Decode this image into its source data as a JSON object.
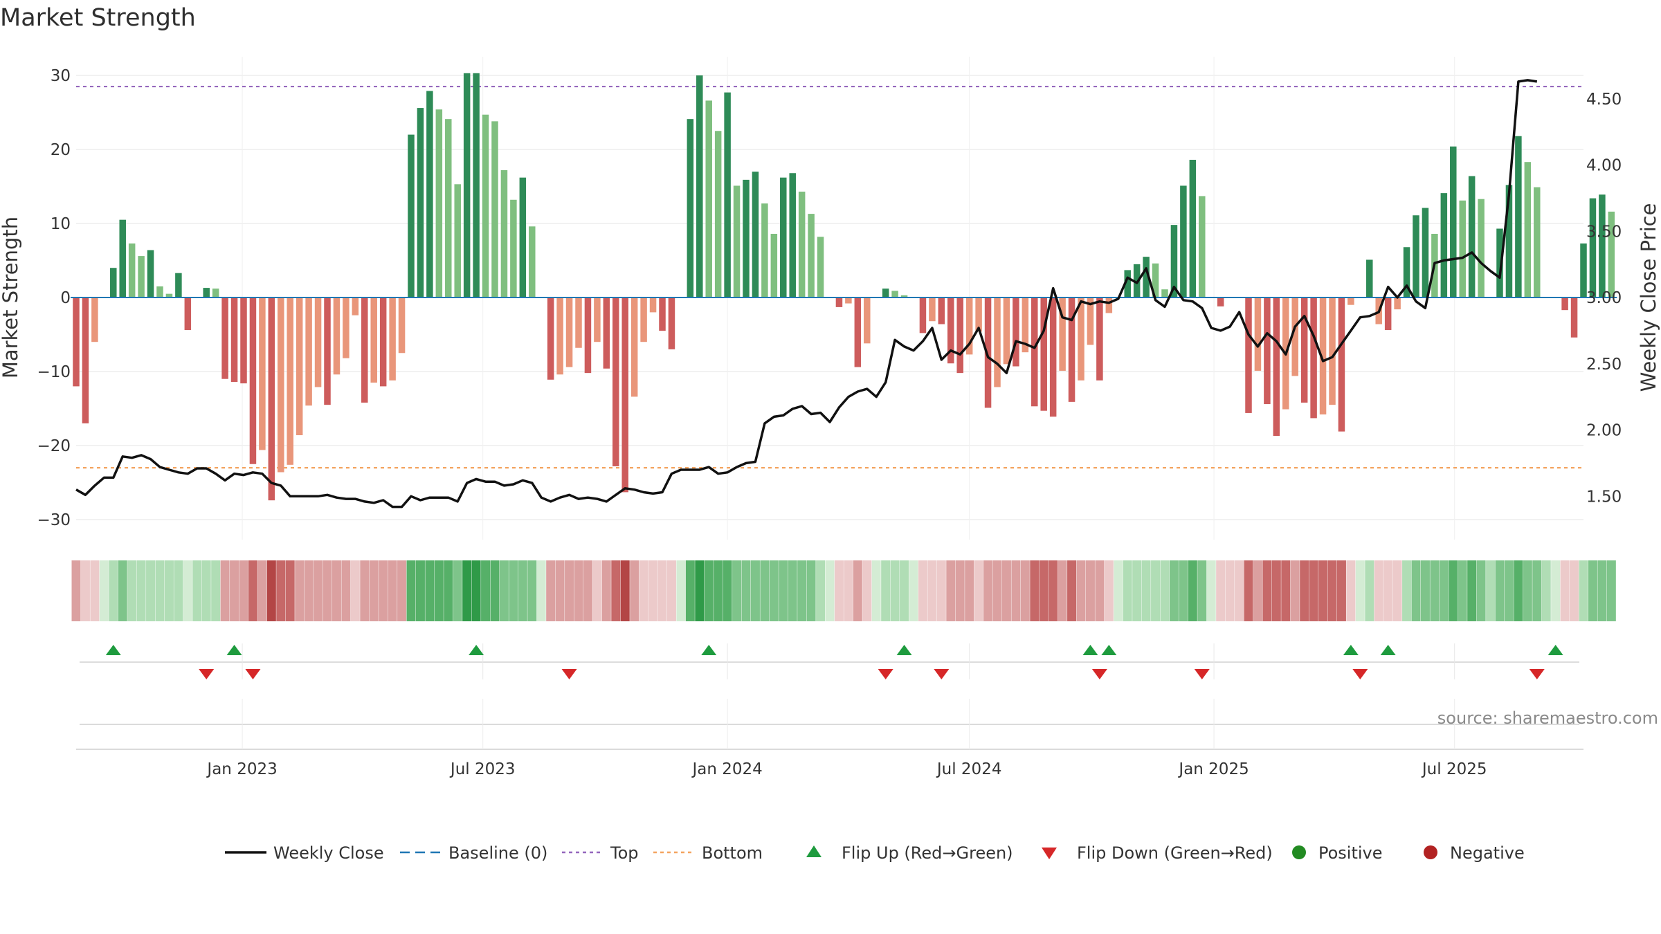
{
  "colors": {
    "pos_dark": "#2e8b57",
    "pos_light": "#7fbf7f",
    "neg_dark": "#cd5c5c",
    "neg_light": "#e9967a",
    "line": "#111111",
    "baseline": "#1f77b4",
    "top": "#9467bd",
    "bottom": "#f4a460",
    "flip_up": "#1e9b3e",
    "flip_down": "#d62728",
    "positive": "#228b22",
    "negative": "#b22222",
    "grid": "#e6e6e6"
  },
  "chart_data": {
    "type": "bar",
    "title": "Market Strength",
    "ylabel": "Market Strength",
    "y2label": "Weekly Close Price",
    "ylim": [
      -33,
      33
    ],
    "y2lim": [
      1.25,
      4.7
    ],
    "yticks": [
      30,
      20,
      10,
      0,
      -10,
      -20,
      -30
    ],
    "yticklabels": [
      "30",
      "20",
      "10",
      "0",
      "−10",
      "−20",
      "−30"
    ],
    "y2ticks": [
      4.5,
      4.0,
      3.5,
      3.0,
      2.5,
      2.0,
      1.5
    ],
    "y2ticklabels": [
      "4.50",
      "4.00",
      "3.50",
      "3.00",
      "2.50",
      "2.00",
      "1.50"
    ],
    "x_start": "2022-08-29",
    "x_end": "2025-10-06",
    "xticks": [
      {
        "date": "2023-01-01",
        "label": "Jan 2023"
      },
      {
        "date": "2023-07-01",
        "label": "Jul 2023"
      },
      {
        "date": "2024-01-01",
        "label": "Jan 2024"
      },
      {
        "date": "2024-07-01",
        "label": "Jul 2024"
      },
      {
        "date": "2025-01-01",
        "label": "Jan 2025"
      },
      {
        "date": "2025-07-01",
        "label": "Jul 2025"
      }
    ],
    "top_line": 28.5,
    "bottom_line": -23,
    "baseline": 0,
    "first_bar_date": "2022-08-29",
    "strength_weekly": [
      -12,
      -17,
      -6,
      0,
      4,
      10.5,
      7.3,
      5.6,
      6.4,
      1.5,
      0.5,
      3.3,
      -4.4,
      0,
      1.3,
      1.2,
      -11,
      -11.4,
      -11.6,
      -22.5,
      -20.6,
      -27.4,
      -23.6,
      -22.6,
      -18.6,
      -14.6,
      -12.1,
      -14.5,
      -10.4,
      -8.2,
      -2.4,
      -14.2,
      -11.5,
      -12,
      -11.2,
      -7.5,
      22,
      25.6,
      27.9,
      25.4,
      24.1,
      15.3,
      30.3,
      30.3,
      24.7,
      23.8,
      17.2,
      13.2,
      16.2,
      9.6,
      0,
      -11.1,
      -10.4,
      -9.4,
      -6.8,
      -10.2,
      -6,
      -9.6,
      -22.8,
      -26.3,
      -13.4,
      -6,
      -2,
      -4.5,
      -7,
      0,
      24.1,
      30,
      26.6,
      22.5,
      27.7,
      15.1,
      15.9,
      17,
      12.7,
      8.6,
      16.2,
      16.8,
      14.3,
      11.3,
      8.2,
      0,
      -1.3,
      -0.8,
      -9.4,
      -6.2,
      0,
      1.2,
      0.9,
      0.3,
      0,
      -4.8,
      -3.2,
      -3.6,
      -8.9,
      -10.2,
      -7.7,
      -4.6,
      -14.9,
      -12.1,
      -9,
      -9.3,
      -7.4,
      -14.7,
      -15.3,
      -16.1,
      -9.9,
      -14.1,
      -11.2,
      -6.4,
      -11.2,
      -2.1,
      0,
      3.7,
      4.5,
      5.5,
      4.6,
      1.1,
      9.8,
      15.1,
      18.6,
      13.7,
      0,
      -1.2,
      0,
      0,
      -15.6,
      -9.9,
      -14.4,
      -18.7,
      -15.1,
      -10.6,
      -14.2,
      -16.3,
      -15.8,
      -14.5,
      -18.1,
      -1,
      0,
      5.1,
      -3.6,
      -4.4,
      -1.6,
      6.8,
      11.1,
      12.1,
      8.6,
      14.1,
      20.4,
      13.1,
      16.4,
      13.3,
      0,
      9.3,
      15.2,
      21.8,
      18.3,
      14.9,
      0,
      0,
      -1.7,
      -5.4,
      7.3,
      13.4,
      13.9,
      11.6
    ],
    "price_weekly": [
      1.55,
      1.51,
      1.58,
      1.64,
      1.64,
      1.8,
      1.79,
      1.81,
      1.78,
      1.72,
      1.7,
      1.68,
      1.67,
      1.71,
      1.71,
      1.67,
      1.62,
      1.67,
      1.66,
      1.68,
      1.67,
      1.6,
      1.58,
      1.5,
      1.5,
      1.5,
      1.5,
      1.51,
      1.49,
      1.48,
      1.48,
      1.46,
      1.45,
      1.47,
      1.42,
      1.42,
      1.5,
      1.47,
      1.49,
      1.49,
      1.49,
      1.46,
      1.6,
      1.63,
      1.61,
      1.61,
      1.58,
      1.59,
      1.62,
      1.6,
      1.49,
      1.46,
      1.49,
      1.51,
      1.48,
      1.49,
      1.48,
      1.46,
      1.51,
      1.56,
      1.55,
      1.53,
      1.52,
      1.53,
      1.67,
      1.7,
      1.7,
      1.7,
      1.72,
      1.67,
      1.68,
      1.72,
      1.75,
      1.76,
      2.05,
      2.1,
      2.11,
      2.16,
      2.18,
      2.12,
      2.13,
      2.06,
      2.17,
      2.25,
      2.29,
      2.31,
      2.25,
      2.36,
      2.68,
      2.63,
      2.6,
      2.67,
      2.77,
      2.53,
      2.6,
      2.57,
      2.65,
      2.77,
      2.55,
      2.5,
      2.43,
      2.67,
      2.65,
      2.62,
      2.75,
      3.07,
      2.85,
      2.83,
      2.97,
      2.95,
      2.97,
      2.96,
      2.99,
      3.15,
      3.11,
      3.22,
      2.98,
      2.93,
      3.08,
      2.98,
      2.97,
      2.92,
      2.77,
      2.75,
      2.78,
      2.89,
      2.72,
      2.63,
      2.73,
      2.67,
      2.57,
      2.78,
      2.86,
      2.71,
      2.52,
      2.55,
      2.65,
      2.75,
      2.85,
      2.86,
      2.89,
      3.08,
      3.0,
      3.09,
      2.97,
      2.92,
      3.26,
      3.28,
      3.29,
      3.3,
      3.34,
      3.26,
      3.2,
      3.15,
      3.78,
      4.63,
      4.64,
      4.63
    ],
    "heat_levels": [
      -2,
      -1,
      -1,
      0,
      1,
      2,
      1,
      1,
      1,
      1,
      1,
      1,
      0,
      1,
      1,
      1,
      -2,
      -2,
      -2,
      -3,
      -2,
      -4,
      -3,
      -3,
      -2,
      -2,
      -2,
      -2,
      -2,
      -2,
      -1,
      -2,
      -2,
      -2,
      -2,
      -2,
      3,
      3,
      3,
      3,
      3,
      2,
      4,
      4,
      3,
      3,
      2,
      2,
      2,
      2,
      0,
      -2,
      -2,
      -2,
      -2,
      -2,
      -1,
      -2,
      -3,
      -4,
      -2,
      -1,
      -1,
      -1,
      -1,
      0,
      3,
      4,
      3,
      3,
      3,
      2,
      2,
      2,
      2,
      2,
      2,
      2,
      2,
      2,
      1,
      0,
      -1,
      -1,
      -2,
      -1,
      0,
      1,
      1,
      1,
      0,
      -1,
      -1,
      -1,
      -2,
      -2,
      -2,
      -1,
      -2,
      -2,
      -2,
      -2,
      -2,
      -3,
      -3,
      -3,
      -2,
      -3,
      -2,
      -2,
      -2,
      -1,
      0,
      1,
      1,
      1,
      1,
      1,
      2,
      2,
      3,
      2,
      0,
      -1,
      -1,
      -1,
      -3,
      -2,
      -3,
      -3,
      -3,
      -2,
      -3,
      -3,
      -3,
      -3,
      -3,
      -1,
      0,
      1,
      -1,
      -1,
      -1,
      1,
      2,
      2,
      2,
      2,
      3,
      2,
      3,
      2,
      1,
      2,
      2,
      3,
      2,
      2,
      1,
      0,
      -1,
      -1,
      1,
      2,
      2,
      2
    ],
    "flip_up_dates": [
      "2022-09-26",
      "2022-12-26",
      "2023-06-26",
      "2023-12-18",
      "2024-05-13",
      "2024-09-30",
      "2024-10-14",
      "2025-04-14",
      "2025-05-12",
      "2025-09-15"
    ],
    "flip_down_dates": [
      "2022-12-05",
      "2023-01-09",
      "2023-09-04",
      "2024-04-29",
      "2024-06-10",
      "2024-10-07",
      "2024-12-23",
      "2025-04-21",
      "2025-09-01"
    ],
    "legend": [
      {
        "key": "close",
        "label": "Weekly Close"
      },
      {
        "key": "baseline",
        "label": "Baseline (0)"
      },
      {
        "key": "top",
        "label": "Top"
      },
      {
        "key": "bottom",
        "label": "Bottom"
      },
      {
        "key": "flipup",
        "label": "Flip Up (Red→Green)"
      },
      {
        "key": "flipdown",
        "label": "Flip Down (Green→Red)"
      },
      {
        "key": "positive",
        "label": "Positive"
      },
      {
        "key": "negative",
        "label": "Negative"
      }
    ],
    "legend_position": "bottom-center",
    "grid": true
  },
  "source": "source: sharemaestro.com"
}
